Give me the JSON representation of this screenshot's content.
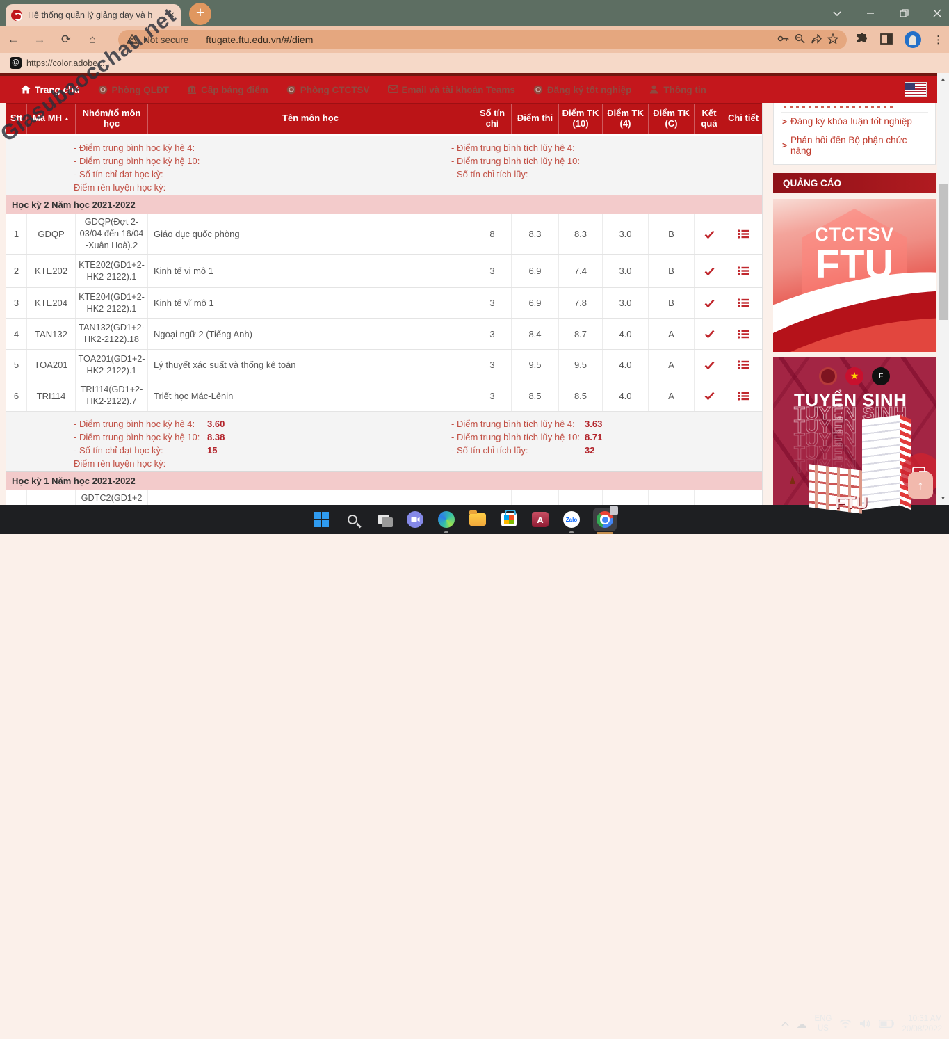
{
  "watermark": "Giasubaocchau.net",
  "browser": {
    "tab_title": "Hệ thống quản lý giảng dạy và h",
    "new_tab": "+",
    "not_secure": "Not secure",
    "url": "ftugate.ftu.edu.vn/#/diem",
    "bookmark_label": "https://color.adobe....",
    "bookmark_icon_glyph": "@"
  },
  "nav": {
    "items": [
      {
        "label": "Trang chủ",
        "icon": "home-icon",
        "active": true
      },
      {
        "label": "Phòng QLĐT",
        "icon": "circle-badge-icon",
        "active": false
      },
      {
        "label": "Cấp bảng điểm",
        "icon": "building-icon",
        "active": false
      },
      {
        "label": "Phòng CTCTSV",
        "icon": "circle-badge-icon",
        "active": false
      },
      {
        "label": "Email và tài khoản Teams",
        "icon": "email-icon",
        "active": false
      },
      {
        "label": "Đăng ký tốt nghiệp",
        "icon": "circle-badge-icon",
        "active": false
      },
      {
        "label": "Thông tin",
        "icon": "user-icon",
        "active": false
      }
    ]
  },
  "table": {
    "headers": {
      "stt": "Stt",
      "code": "Mã MH",
      "sort_arrow": "▲",
      "group": "Nhóm/tổ môn học",
      "name": "Tên môn học",
      "credits": "Số tín chỉ",
      "exam": "Điểm thi",
      "tk10": "Điểm TK (10)",
      "tk4": "Điểm TK (4)",
      "tkc": "Điểm TK (C)",
      "result": "Kết quả",
      "detail": "Chi tiết"
    },
    "semester2_title": "Học kỳ 2 Năm học 2021-2022",
    "semester1_title": "Học kỳ 1 Năm học 2021-2022",
    "semester1_partial_group": "GDTC2(GD1+2",
    "rows": [
      {
        "stt": "1",
        "code": "GDQP",
        "group": "GDQP(Đợt 2-03/04 đến 16/04 -Xuân Hoà).2",
        "name": "Giáo dục quốc phòng",
        "credits": "8",
        "exam": "8.3",
        "tk10": "8.3",
        "tk4": "3.0",
        "tkc": "B"
      },
      {
        "stt": "2",
        "code": "KTE202",
        "group": "KTE202(GD1+2-HK2-2122).1",
        "name": "Kinh tế vi mô 1",
        "credits": "3",
        "exam": "6.9",
        "tk10": "7.4",
        "tk4": "3.0",
        "tkc": "B"
      },
      {
        "stt": "3",
        "code": "KTE204",
        "group": "KTE204(GD1+2-HK2-2122).1",
        "name": "Kinh tế vĩ mô 1",
        "credits": "3",
        "exam": "6.9",
        "tk10": "7.8",
        "tk4": "3.0",
        "tkc": "B"
      },
      {
        "stt": "4",
        "code": "TAN132",
        "group": "TAN132(GD1+2-HK2-2122).18",
        "name": "Ngoại ngữ 2 (Tiếng Anh)",
        "credits": "3",
        "exam": "8.4",
        "tk10": "8.7",
        "tk4": "4.0",
        "tkc": "A"
      },
      {
        "stt": "5",
        "code": "TOA201",
        "group": "TOA201(GD1+2-HK2-2122).1",
        "name": "Lý thuyết xác suất và thống kê toán",
        "credits": "3",
        "exam": "9.5",
        "tk10": "9.5",
        "tk4": "4.0",
        "tkc": "A"
      },
      {
        "stt": "6",
        "code": "TRI114",
        "group": "TRI114(GD1+2-HK2-2122).7",
        "name": "Triết học Mác-Lênin",
        "credits": "3",
        "exam": "8.5",
        "tk10": "8.5",
        "tk4": "4.0",
        "tkc": "A"
      }
    ]
  },
  "summary_top": {
    "left": [
      {
        "label": "- Điểm trung bình học kỳ hệ 4:",
        "value": ""
      },
      {
        "label": "- Điểm trung bình học kỳ hệ 10:",
        "value": ""
      },
      {
        "label": "- Số tín chỉ đạt học kỳ:",
        "value": ""
      },
      {
        "label": "Điểm rèn luyện học kỳ:",
        "value": ""
      }
    ],
    "right": [
      {
        "label": "- Điểm trung bình tích lũy hệ 4:",
        "value": ""
      },
      {
        "label": "- Điểm trung bình tích lũy hệ 10:",
        "value": ""
      },
      {
        "label": "- Số tín chỉ tích lũy:",
        "value": ""
      }
    ]
  },
  "summary_bottom": {
    "left": [
      {
        "label": "- Điểm trung bình học kỳ hệ 4:",
        "value": "3.60"
      },
      {
        "label": "- Điểm trung bình học kỳ hệ 10:",
        "value": "8.38"
      },
      {
        "label": "- Số tín chỉ đạt học kỳ:",
        "value": "15"
      },
      {
        "label": "Điểm rèn luyện học kỳ:",
        "value": ""
      }
    ],
    "right": [
      {
        "label": "- Điểm trung bình tích lũy hệ 4:",
        "value": "3.63"
      },
      {
        "label": "- Điểm trung bình tích lũy hệ 10:",
        "value": "8.71"
      },
      {
        "label": "- Số tín chỉ tích lũy:",
        "value": "32"
      }
    ]
  },
  "sidebar": {
    "links": [
      "Đăng ký khóa luận tốt nghiệp",
      "Phản hồi đến Bộ phận chức năng"
    ],
    "link_chevron": ">",
    "ads_header": "QUẢNG CÁO",
    "ad1": {
      "line1": "CTCTSV",
      "line2": "FTU"
    },
    "ad2": {
      "title": "TUYỂN SINH",
      "ghost_count": 5,
      "ftu_mark": "FTU",
      "star_glyph": "★",
      "logo3_glyph": "F"
    },
    "scroll_top_glyph": "↑"
  },
  "taskbar": {
    "zalo_label": "Zalo",
    "access_label": "A",
    "lang_line1": "ENG",
    "lang_line2": "US",
    "time": "10:31 AM",
    "date": "20/08/2022"
  },
  "colors": {
    "nav_red": "#c4171c",
    "header_red": "#bb1417",
    "section_pink": "#f3cbcb",
    "accent_check": "#c0272d",
    "link_red": "#c0392b",
    "tabbar_green": "#5d6e62",
    "toolbar_peach": "#efc3a9"
  }
}
